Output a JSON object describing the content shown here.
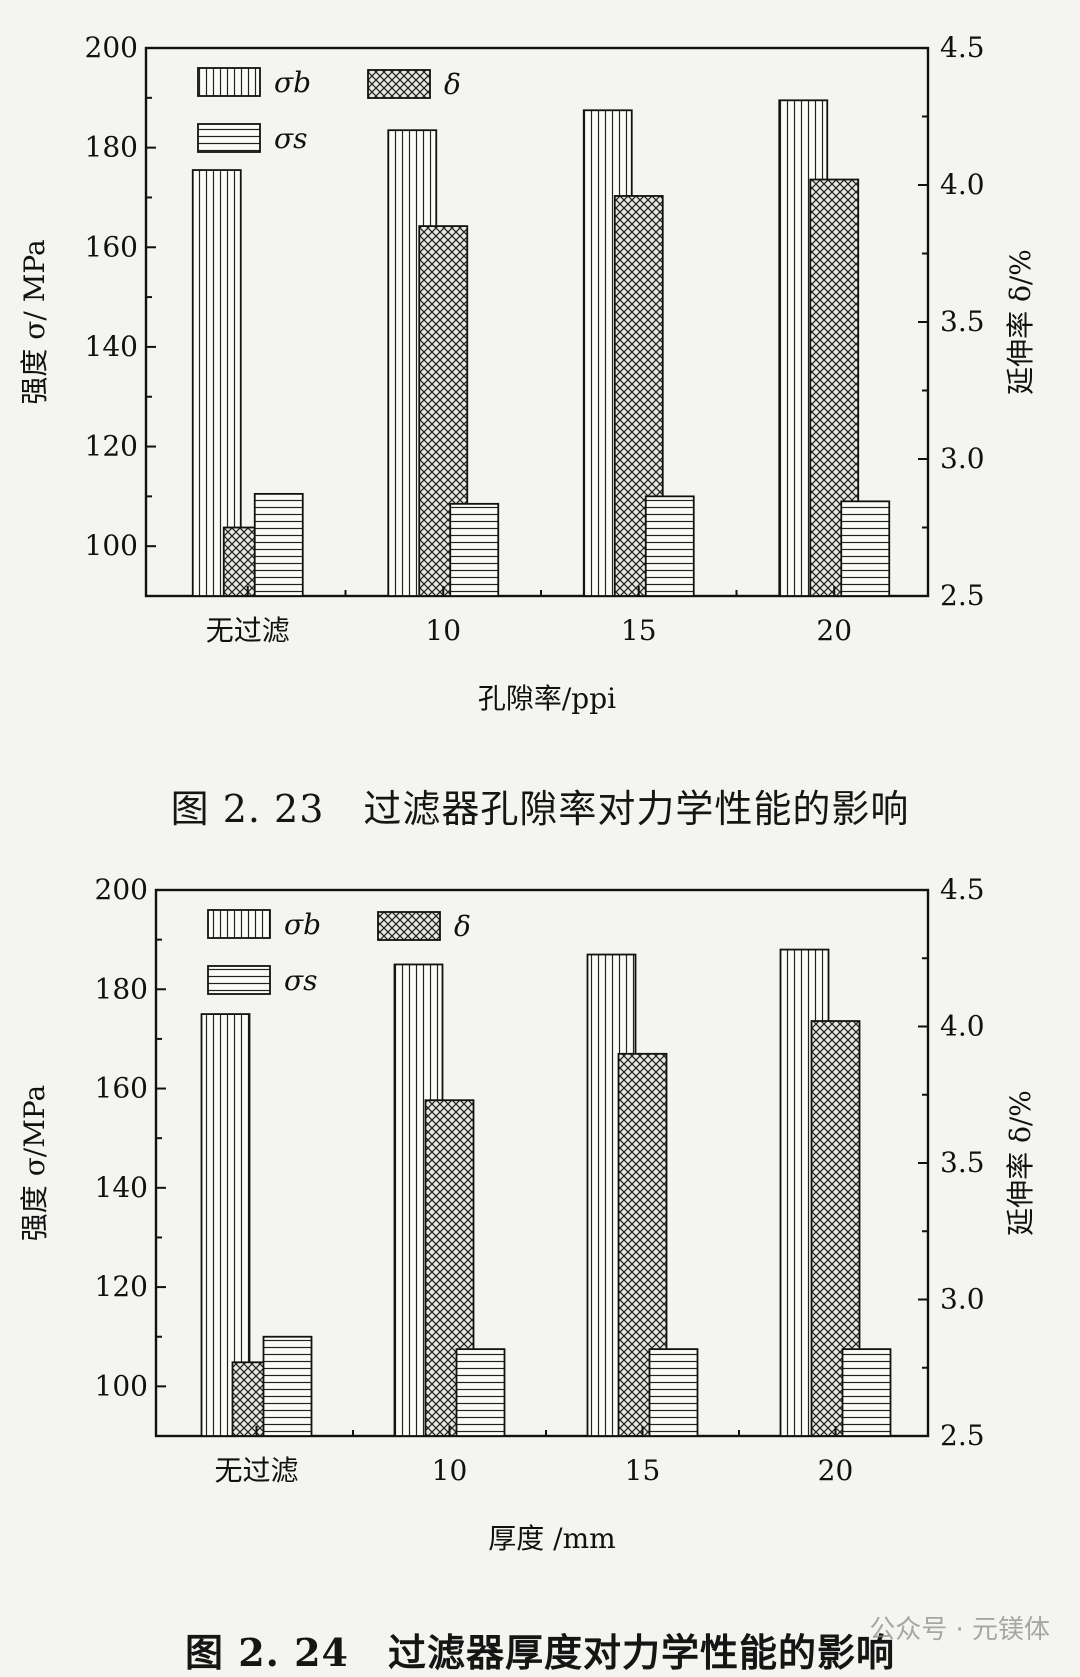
{
  "chart_data": [
    {
      "type": "bar",
      "categories": [
        "无过滤",
        "10",
        "15",
        "20"
      ],
      "xlabel": "孔隙率/ppi",
      "ylabel": "强度 σ/ MPa",
      "y2label": "延伸率 δ/%",
      "ylim": [
        90,
        200
      ],
      "y2lim": [
        2.5,
        4.5
      ],
      "yticks": [
        "100",
        "120",
        "140",
        "160",
        "180",
        "200"
      ],
      "y2ticks": [
        "2.5",
        "3.0",
        "3.5",
        "4.0",
        "4.5"
      ],
      "series": [
        {
          "name": "σb",
          "axis": "left",
          "pattern": "vertical",
          "values": [
            175.5,
            183.5,
            187.5,
            189.5
          ]
        },
        {
          "name": "δ",
          "axis": "right",
          "pattern": "crosshatch",
          "values": [
            2.75,
            3.85,
            3.96,
            4.02
          ]
        },
        {
          "name": "σs",
          "axis": "left",
          "pattern": "horizontal",
          "values": [
            110.5,
            108.5,
            110,
            109
          ]
        }
      ],
      "legend_position": "top-left",
      "caption": "图 2. 23　过滤器孔隙率对力学性能的影响"
    },
    {
      "type": "bar",
      "categories": [
        "无过滤",
        "10",
        "15",
        "20"
      ],
      "xlabel": "厚度 /mm",
      "ylabel": "强度 σ/MPa",
      "y2label": "延伸率 δ/%",
      "ylim": [
        90,
        200
      ],
      "y2lim": [
        2.5,
        4.5
      ],
      "yticks": [
        "100",
        "120",
        "140",
        "160",
        "180",
        "200"
      ],
      "y2ticks": [
        "2.5",
        "3.0",
        "3.5",
        "4.0",
        "4.5"
      ],
      "series": [
        {
          "name": "σb",
          "axis": "left",
          "pattern": "vertical",
          "values": [
            175,
            185,
            187,
            188
          ]
        },
        {
          "name": "δ",
          "axis": "right",
          "pattern": "crosshatch",
          "values": [
            2.77,
            3.73,
            3.9,
            4.02
          ]
        },
        {
          "name": "σs",
          "axis": "left",
          "pattern": "horizontal",
          "values": [
            110,
            107.5,
            107.5,
            107.5
          ]
        }
      ],
      "legend_position": "top-left",
      "caption": "图 2. 24　过滤器厚度对力学性能的影响"
    }
  ],
  "watermark": "公众号 · 元镁体"
}
